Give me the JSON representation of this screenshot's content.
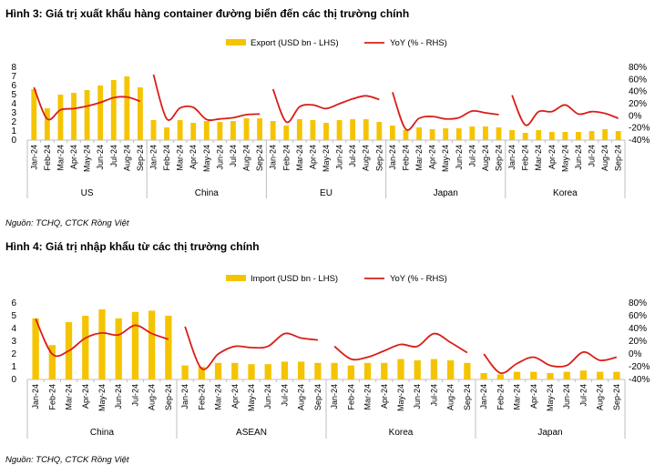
{
  "colors": {
    "bar": "#F5C400",
    "line": "#D91E18",
    "axis": "#BFBFBF"
  },
  "chart_data": [
    {
      "type": "bar",
      "title": "Hình 3: Giá trị xuất khẩu hàng container đường biển đến các thị trường chính",
      "source": "Nguồn: TCHQ, CTCK Rồng Việt",
      "legend": {
        "bar": "Export (USD bn - LHS)",
        "line": "YoY (% - RHS)",
        "placement": "top-center"
      },
      "y_left": {
        "min": 0,
        "max": 8,
        "ticks": [
          "0",
          "1",
          "2",
          "3",
          "4",
          "5",
          "6",
          "7",
          "8"
        ]
      },
      "y_right": {
        "min": -40,
        "max": 80,
        "ticks": [
          "-40%",
          "-20%",
          "0%",
          "20%",
          "40%",
          "60%",
          "80%"
        ]
      },
      "categories": [
        "Jan-24",
        "Feb-24",
        "Mar-24",
        "Apr-24",
        "May-24",
        "Jun-24",
        "Jul-24",
        "Aug-24",
        "Sep-24"
      ],
      "groups": [
        {
          "name": "US",
          "values": [
            5.6,
            3.5,
            5.0,
            5.2,
            5.5,
            6.0,
            6.6,
            7.0,
            5.8
          ],
          "yoy": [
            47,
            -5,
            10,
            12,
            16,
            22,
            30,
            31,
            24
          ]
        },
        {
          "name": "China",
          "values": [
            2.2,
            1.4,
            2.2,
            1.9,
            2.1,
            2.0,
            2.1,
            2.4,
            2.4
          ],
          "yoy": [
            68,
            -5,
            13,
            14,
            -6,
            -5,
            -3,
            2,
            3
          ]
        },
        {
          "name": "EU",
          "values": [
            2.1,
            1.6,
            2.3,
            2.2,
            1.9,
            2.2,
            2.3,
            2.3,
            2.0
          ],
          "yoy": [
            44,
            -10,
            15,
            18,
            12,
            20,
            28,
            33,
            27
          ]
        },
        {
          "name": "Japan",
          "values": [
            1.6,
            1.1,
            1.4,
            1.2,
            1.3,
            1.3,
            1.5,
            1.5,
            1.4
          ],
          "yoy": [
            39,
            -22,
            -4,
            -1,
            -5,
            -3,
            8,
            5,
            2
          ]
        },
        {
          "name": "Korea",
          "values": [
            1.1,
            0.8,
            1.1,
            0.9,
            0.9,
            0.9,
            1.0,
            1.2,
            1.0
          ],
          "yoy": [
            34,
            -15,
            7,
            7,
            18,
            3,
            7,
            4,
            -4
          ]
        }
      ]
    },
    {
      "type": "bar",
      "title": "Hình 4: Giá trị nhập khẩu từ các thị trường chính",
      "source": "Nguồn: TCHQ, CTCK Rồng Việt",
      "legend": {
        "bar": "Import (USD bn - LHS)",
        "line": "YoY (% - RHS)",
        "placement": "top-center"
      },
      "y_left": {
        "min": 0,
        "max": 6,
        "ticks": [
          "0",
          "1",
          "2",
          "3",
          "4",
          "5",
          "6"
        ]
      },
      "y_right": {
        "min": -40,
        "max": 80,
        "ticks": [
          "-40%",
          "-20%",
          "0%",
          "20%",
          "40%",
          "60%",
          "80%"
        ]
      },
      "categories": [
        "Jan-24",
        "Feb-24",
        "Mar-24",
        "Apr-24",
        "May-24",
        "Jun-24",
        "Jul-24",
        "Aug-24",
        "Sep-24"
      ],
      "groups": [
        {
          "name": "China",
          "values": [
            4.8,
            2.7,
            4.5,
            5.0,
            5.5,
            4.8,
            5.3,
            5.4,
            5.0
          ],
          "yoy": [
            55,
            0,
            5,
            25,
            33,
            30,
            45,
            32,
            23
          ]
        },
        {
          "name": "ASEAN",
          "values": [
            1.1,
            1.0,
            1.3,
            1.3,
            1.2,
            1.2,
            1.4,
            1.4,
            1.3
          ],
          "yoy": [
            43,
            -23,
            0,
            12,
            10,
            12,
            32,
            25,
            22
          ]
        },
        {
          "name": "Korea",
          "values": [
            1.3,
            1.1,
            1.3,
            1.3,
            1.6,
            1.5,
            1.6,
            1.5,
            1.3
          ],
          "yoy": [
            12,
            -8,
            -5,
            5,
            15,
            12,
            32,
            18,
            2
          ]
        },
        {
          "name": "Japan",
          "values": [
            0.5,
            0.4,
            0.6,
            0.6,
            0.5,
            0.6,
            0.7,
            0.6,
            0.6
          ],
          "yoy": [
            0,
            -30,
            -15,
            -5,
            -18,
            -18,
            3,
            -10,
            -5
          ]
        }
      ]
    }
  ]
}
